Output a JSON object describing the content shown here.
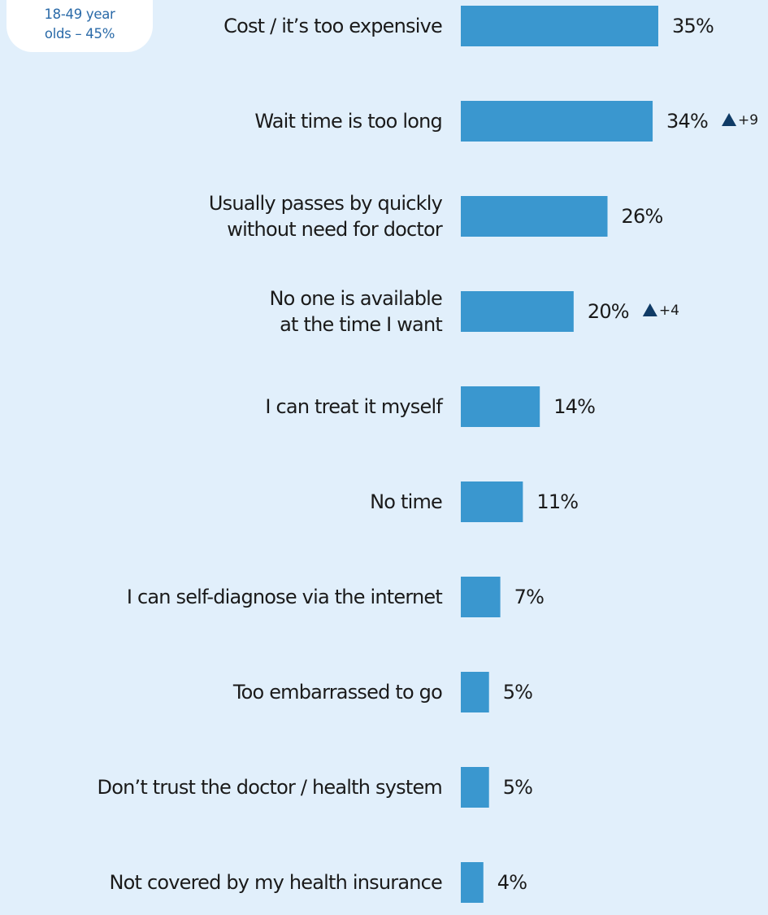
{
  "badge": {
    "line1": "18-49 year",
    "line2": "olds – 45%"
  },
  "colors": {
    "background": "#e1effb",
    "bar": "#3a97cf",
    "badge_text": "#2a6aa8",
    "arrow": "#0f3b66",
    "text": "#1a1a1a"
  },
  "chart_data": {
    "type": "bar",
    "orientation": "horizontal",
    "categories": [
      [
        "Cost / it’s too expensive"
      ],
      [
        "Wait time is too long"
      ],
      [
        "Usually passes by quickly",
        "without need for doctor"
      ],
      [
        "No one is available",
        "at the time I want"
      ],
      [
        "I can treat it myself"
      ],
      [
        "No time"
      ],
      [
        "I can self-diagnose via the internet"
      ],
      [
        "Too embarrassed to go"
      ],
      [
        "Don’t trust the doctor / health system"
      ],
      [
        "Not covered by my health insurance"
      ]
    ],
    "values": [
      35,
      34,
      26,
      20,
      14,
      11,
      7,
      5,
      5,
      4
    ],
    "value_labels": [
      "35%",
      "34%",
      "26%",
      "20%",
      "14%",
      "11%",
      "7%",
      "5%",
      "5%",
      "4%"
    ],
    "changes": [
      "",
      "+9",
      "",
      "+4",
      "",
      "",
      "",
      "",
      "",
      ""
    ],
    "change_marker": "up-triangle-icon",
    "title": "",
    "xlabel": "",
    "ylabel": "",
    "xlim": [
      0,
      35
    ],
    "grid": false,
    "legend": "none"
  }
}
